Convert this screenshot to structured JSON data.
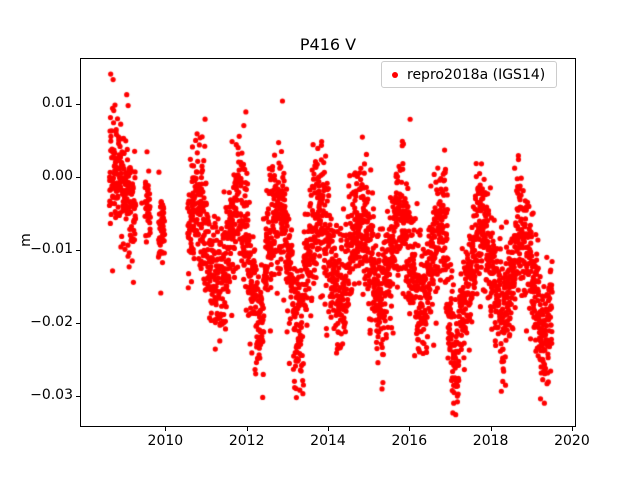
{
  "chart_data": {
    "type": "scatter",
    "title": "P416 V",
    "xlabel": "",
    "ylabel": "m",
    "xlim": [
      2007.9,
      2020.1
    ],
    "ylim": [
      -0.0343,
      0.0164
    ],
    "grid": false,
    "legend_position": "upper right",
    "xticks": [
      2010,
      2012,
      2014,
      2016,
      2018,
      2020
    ],
    "xtick_labels": [
      "2010",
      "2012",
      "2014",
      "2016",
      "2018",
      "2020"
    ],
    "yticks": [
      0.01,
      0.0,
      -0.01,
      -0.02,
      -0.03
    ],
    "ytick_labels": [
      "0.01",
      "0.00",
      "−0.01",
      "−0.02",
      "−0.03"
    ],
    "series": [
      {
        "name": "repro2018a (IGS14)",
        "marker": "circle",
        "color": "#ff0000",
        "marker_radius_px": 2.6,
        "model": {
          "comment": "Daily GPS vertical position residuals (m): seasonal annual cycle + slow negative trend + noise; dense 2008.6-2009.3, sparse 2009.5-2010.0, dense 2010.55-2019.5",
          "segments": [
            {
              "t_start": 2008.62,
              "t_end": 2009.27,
              "step": 0.0027,
              "dropout": 0.15,
              "base": -0.002,
              "trend": 0,
              "seasonal_amp": 0.003,
              "seasonal_phase": 0.78,
              "noise_sd": 0.0042
            },
            {
              "t_start": 2009.5,
              "t_end": 2009.63,
              "step": 0.003,
              "dropout": 0.1,
              "base": -0.0045,
              "trend": 0,
              "seasonal_amp": 0,
              "seasonal_phase": 0,
              "noise_sd": 0.0025
            },
            {
              "t_start": 2009.83,
              "t_end": 2009.98,
              "step": 0.003,
              "dropout": 0.1,
              "base": -0.007,
              "trend": 0,
              "seasonal_amp": 0,
              "seasonal_phase": 0,
              "noise_sd": 0.003
            },
            {
              "t_start": 2010.55,
              "t_end": 2019.52,
              "step": 0.0027,
              "dropout": 0.12,
              "base": -0.0085,
              "trend": -0.00055,
              "seasonal_amp": 0.0058,
              "seasonal_phase": 0.78,
              "noise_sd": 0.0042
            }
          ],
          "anomalies": [
            {
              "start": 2016.95,
              "end": 2017.22,
              "offset": -0.009
            },
            {
              "start": 2019.2,
              "end": 2019.52,
              "offset": -0.003
            },
            {
              "start": 2012.2,
              "end": 2012.45,
              "offset": -0.004
            },
            {
              "start": 2013.15,
              "end": 2013.4,
              "offset": -0.005
            }
          ],
          "outlier_points": [
            [
              2008.655,
              0.0142
            ],
            [
              2008.7,
              0.0095
            ],
            [
              2010.78,
              0.006
            ],
            [
              2011.98,
              0.009
            ],
            [
              2012.88,
              0.0105
            ],
            [
              2016.02,
              0.008
            ],
            [
              2009.42,
              -0.0035
            ],
            [
              2013.05,
              -0.0255
            ],
            [
              2016.6,
              -0.023
            ],
            [
              2017.1,
              -0.0295
            ],
            [
              2019.4,
              -0.0268
            ]
          ]
        }
      }
    ],
    "legend": {
      "label": "repro2018a (IGS14)",
      "marker_color": "#ff0000"
    },
    "colors": {
      "points": "#ff0000",
      "axes": "#000000",
      "background": "#ffffff",
      "legend_border": "#cccccc"
    }
  }
}
